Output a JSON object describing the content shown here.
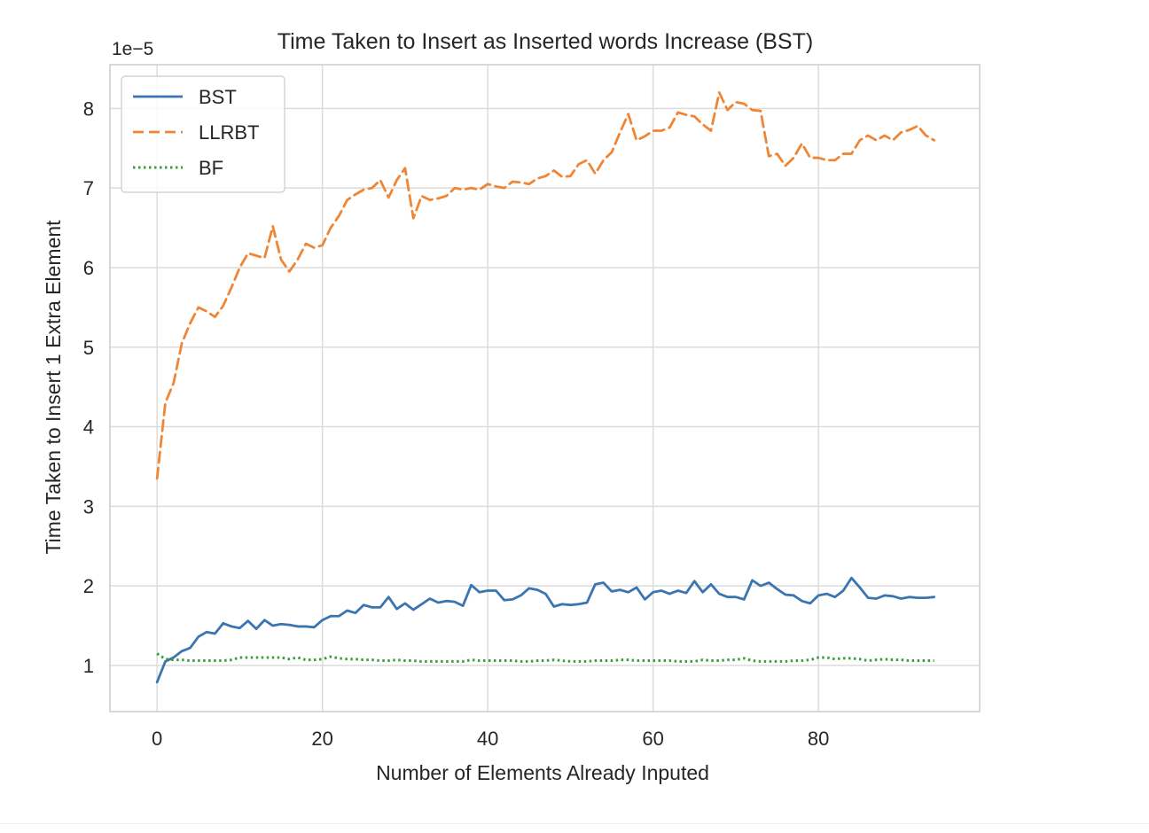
{
  "chart_data": {
    "type": "line",
    "title": "Time Taken to Insert as Inserted words Increase (BST)",
    "xlabel": "Number of Elements Already Inputed",
    "ylabel": "Time Taken to Insert 1 Extra Element",
    "y_offset_label": "1e−5",
    "xlim": [
      -5.7,
      99.5
    ],
    "ylim": [
      0.42,
      8.55
    ],
    "x_ticks": [
      0,
      20,
      40,
      60,
      80
    ],
    "x_tick_labels": [
      "0",
      "20",
      "40",
      "60",
      "80"
    ],
    "y_ticks": [
      1,
      2,
      3,
      4,
      5,
      6,
      7,
      8
    ],
    "y_tick_labels": [
      "1",
      "2",
      "3",
      "4",
      "5",
      "6",
      "7",
      "8"
    ],
    "grid": true,
    "legend_position": "top-left",
    "x": [
      0,
      1,
      2,
      3,
      4,
      5,
      6,
      7,
      8,
      9,
      10,
      11,
      12,
      13,
      14,
      15,
      16,
      17,
      18,
      19,
      20,
      21,
      22,
      23,
      24,
      25,
      26,
      27,
      28,
      29,
      30,
      31,
      32,
      33,
      34,
      35,
      36,
      37,
      38,
      39,
      40,
      41,
      42,
      43,
      44,
      45,
      46,
      47,
      48,
      49,
      50,
      51,
      52,
      53,
      54,
      55,
      56,
      57,
      58,
      59,
      60,
      61,
      62,
      63,
      64,
      65,
      66,
      67,
      68,
      69,
      70,
      71,
      72,
      73,
      74,
      75,
      76,
      77,
      78,
      79,
      80,
      81,
      82,
      83,
      84,
      85,
      86,
      87,
      88,
      89,
      90,
      91,
      92,
      93,
      94
    ],
    "series": [
      {
        "name": "BST",
        "color": "#3a75b0",
        "dash": "solid",
        "values": [
          0.79,
          1.05,
          1.1,
          1.18,
          1.22,
          1.36,
          1.42,
          1.4,
          1.53,
          1.49,
          1.47,
          1.56,
          1.46,
          1.57,
          1.5,
          1.52,
          1.51,
          1.49,
          1.49,
          1.48,
          1.57,
          1.62,
          1.62,
          1.69,
          1.66,
          1.76,
          1.73,
          1.73,
          1.86,
          1.71,
          1.78,
          1.7,
          1.77,
          1.84,
          1.79,
          1.81,
          1.8,
          1.75,
          2.01,
          1.92,
          1.94,
          1.94,
          1.82,
          1.83,
          1.88,
          1.97,
          1.95,
          1.9,
          1.74,
          1.77,
          1.76,
          1.77,
          1.79,
          2.02,
          2.04,
          1.93,
          1.95,
          1.92,
          1.98,
          1.83,
          1.92,
          1.94,
          1.9,
          1.94,
          1.91,
          2.06,
          1.92,
          2.02,
          1.9,
          1.86,
          1.86,
          1.83,
          2.07,
          2.0,
          2.04,
          1.96,
          1.89,
          1.88,
          1.81,
          1.78,
          1.88,
          1.9,
          1.86,
          1.94,
          2.1,
          1.98,
          1.85,
          1.84,
          1.88,
          1.87,
          1.84,
          1.86,
          1.85,
          1.85,
          1.86
        ]
      },
      {
        "name": "LLRBT",
        "color": "#ef8636",
        "dash": "dashed",
        "values": [
          3.35,
          4.3,
          4.55,
          5.05,
          5.3,
          5.5,
          5.45,
          5.38,
          5.52,
          5.75,
          6.0,
          6.18,
          6.15,
          6.12,
          6.52,
          6.1,
          5.95,
          6.1,
          6.3,
          6.25,
          6.28,
          6.5,
          6.65,
          6.85,
          6.92,
          6.98,
          7.0,
          7.1,
          6.88,
          7.1,
          7.25,
          6.62,
          6.9,
          6.85,
          6.87,
          6.9,
          7.0,
          6.98,
          7.0,
          6.98,
          7.05,
          7.02,
          7.0,
          7.08,
          7.07,
          7.05,
          7.12,
          7.15,
          7.22,
          7.14,
          7.15,
          7.3,
          7.35,
          7.18,
          7.35,
          7.45,
          7.7,
          7.93,
          7.6,
          7.65,
          7.72,
          7.72,
          7.76,
          7.95,
          7.92,
          7.9,
          7.8,
          7.72,
          8.2,
          7.98,
          8.08,
          8.06,
          7.98,
          7.97,
          7.4,
          7.43,
          7.28,
          7.38,
          7.56,
          7.38,
          7.38,
          7.35,
          7.35,
          7.43,
          7.43,
          7.6,
          7.66,
          7.6,
          7.66,
          7.6,
          7.7,
          7.73,
          7.78,
          7.66,
          7.6
        ]
      },
      {
        "name": "BF",
        "color": "#3b9e3b",
        "dash": "dotted",
        "values": [
          1.15,
          1.08,
          1.07,
          1.07,
          1.06,
          1.06,
          1.06,
          1.06,
          1.06,
          1.07,
          1.1,
          1.1,
          1.1,
          1.1,
          1.1,
          1.1,
          1.08,
          1.1,
          1.07,
          1.07,
          1.08,
          1.11,
          1.09,
          1.08,
          1.08,
          1.07,
          1.07,
          1.06,
          1.06,
          1.07,
          1.06,
          1.06,
          1.05,
          1.05,
          1.05,
          1.05,
          1.05,
          1.05,
          1.07,
          1.06,
          1.06,
          1.06,
          1.06,
          1.06,
          1.05,
          1.05,
          1.06,
          1.06,
          1.07,
          1.06,
          1.05,
          1.05,
          1.05,
          1.06,
          1.06,
          1.06,
          1.07,
          1.07,
          1.06,
          1.06,
          1.06,
          1.06,
          1.06,
          1.05,
          1.05,
          1.05,
          1.07,
          1.06,
          1.06,
          1.07,
          1.07,
          1.09,
          1.06,
          1.05,
          1.05,
          1.05,
          1.05,
          1.06,
          1.06,
          1.07,
          1.1,
          1.1,
          1.08,
          1.09,
          1.09,
          1.08,
          1.06,
          1.07,
          1.08,
          1.07,
          1.07,
          1.06,
          1.06,
          1.06,
          1.06
        ]
      }
    ]
  }
}
